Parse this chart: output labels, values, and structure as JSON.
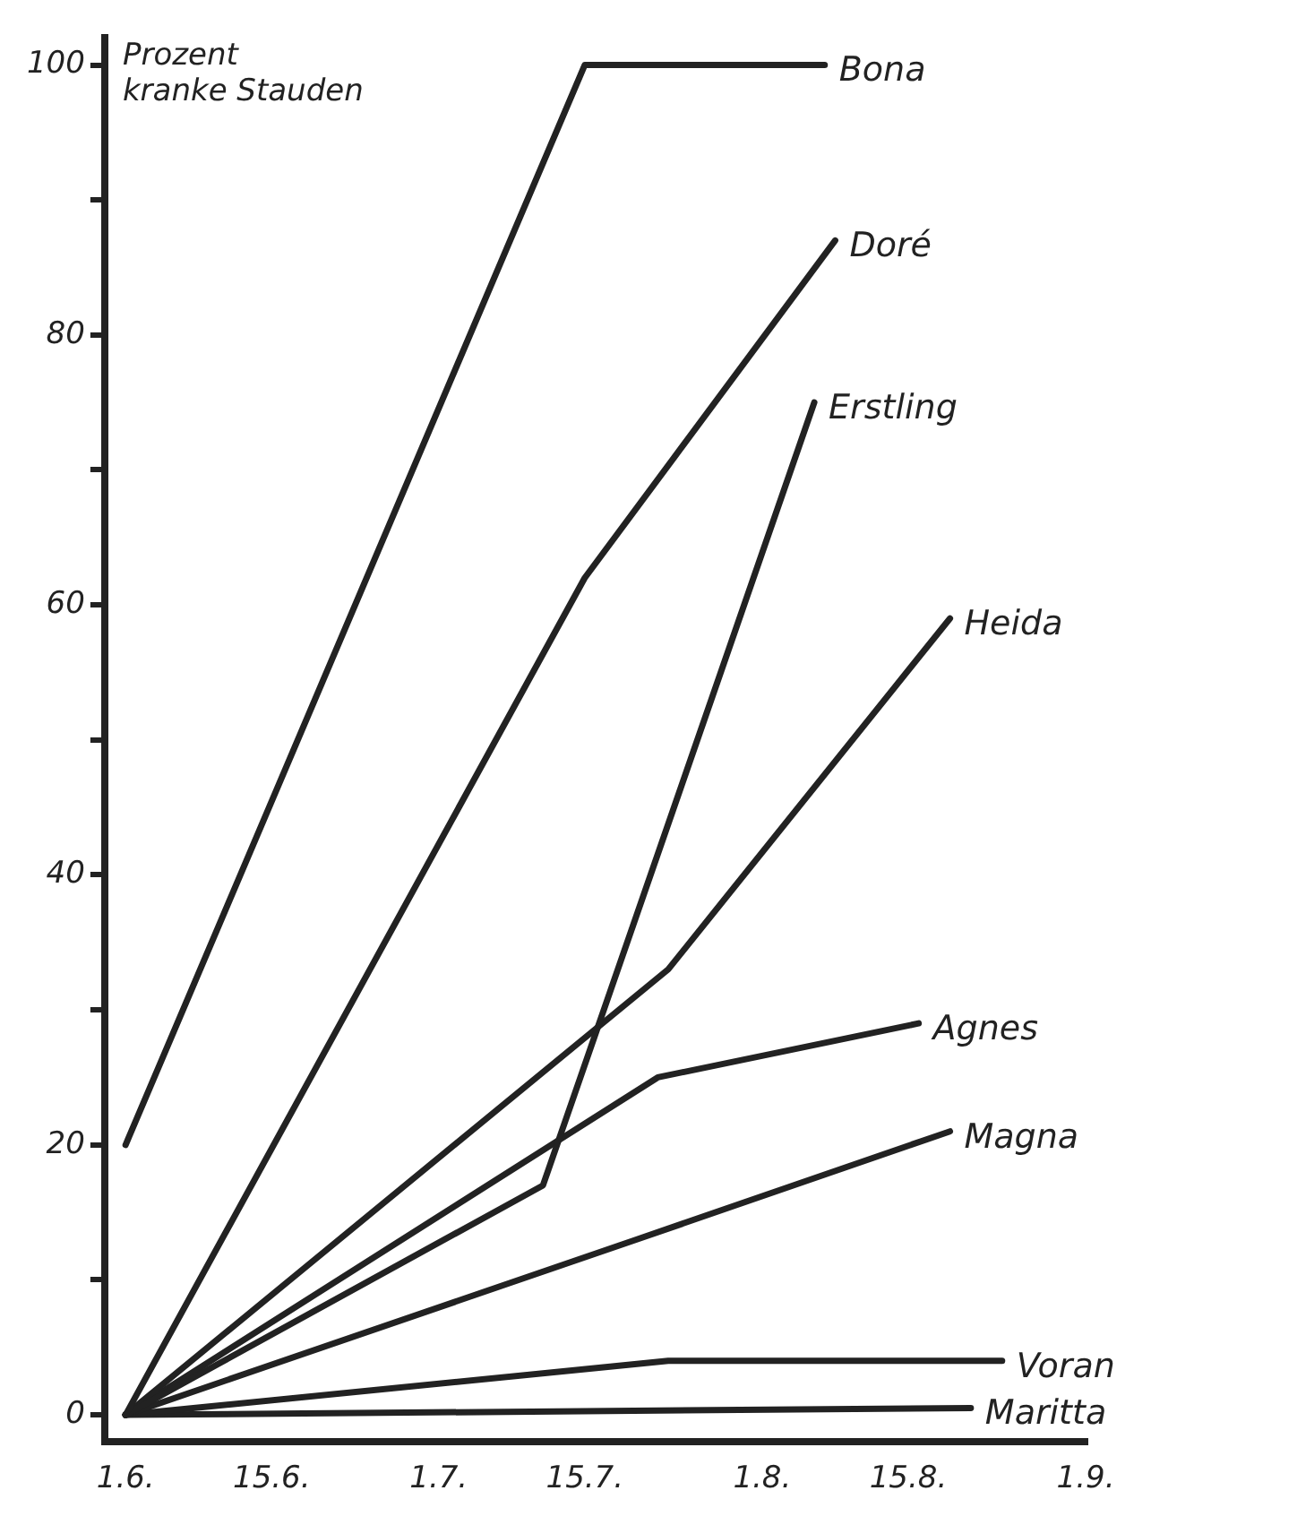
{
  "chart_data": {
    "type": "line",
    "ylabel": "Prozent\nkranke Stauden",
    "xlim": [
      "--05-30",
      "--09-01"
    ],
    "ylim": [
      -2,
      102
    ],
    "xticks": [
      {
        "value": "--06-01",
        "label": "1.6."
      },
      {
        "value": "--06-15",
        "label": "15.6."
      },
      {
        "value": "--07-01",
        "label": "1.7."
      },
      {
        "value": "--07-15",
        "label": "15.7."
      },
      {
        "value": "--08-01",
        "label": "1.8."
      },
      {
        "value": "--08-15",
        "label": "15.8."
      },
      {
        "value": "--09-01",
        "label": "1.9."
      }
    ],
    "yticks": [
      0,
      {
        "value": 10,
        "label": null
      },
      20,
      {
        "value": 30,
        "label": null
      },
      40,
      {
        "value": 50,
        "label": null
      },
      60,
      {
        "value": 70,
        "label": null
      },
      80,
      {
        "value": 90,
        "label": null
      },
      100
    ],
    "grid": false,
    "legend": false,
    "marker": "none",
    "line_style": "solid",
    "series": [
      {
        "name": "Bona",
        "color": "#222222",
        "x": [
          "--06-01",
          "--07-15",
          "--08-07"
        ],
        "values": [
          20,
          100,
          100
        ]
      },
      {
        "name": "Doré",
        "color": "#222222",
        "x": [
          "--06-01",
          "--07-15",
          "--08-08"
        ],
        "values": [
          0,
          62,
          87
        ]
      },
      {
        "name": "Erstling",
        "color": "#222222",
        "x": [
          "--06-01",
          "--07-11",
          "--08-06"
        ],
        "values": [
          0,
          17,
          75
        ]
      },
      {
        "name": "Heida",
        "color": "#222222",
        "x": [
          "--06-01",
          "--07-23",
          "--08-19"
        ],
        "values": [
          0,
          33,
          59
        ]
      },
      {
        "name": "Agnes",
        "color": "#222222",
        "x": [
          "--06-01",
          "--07-22",
          "--08-16"
        ],
        "values": [
          0,
          25,
          29
        ]
      },
      {
        "name": "Magna",
        "color": "#222222",
        "x": [
          "--06-01",
          "--07-20",
          "--08-19"
        ],
        "values": [
          0,
          13,
          21
        ]
      },
      {
        "name": "Voran",
        "color": "#222222",
        "x": [
          "--06-01",
          "--07-23",
          "--08-24"
        ],
        "values": [
          0,
          4,
          4
        ]
      },
      {
        "name": "Maritta",
        "color": "#222222",
        "x": [
          "--06-01",
          "--08-21"
        ],
        "values": [
          0,
          0.5
        ]
      }
    ]
  }
}
